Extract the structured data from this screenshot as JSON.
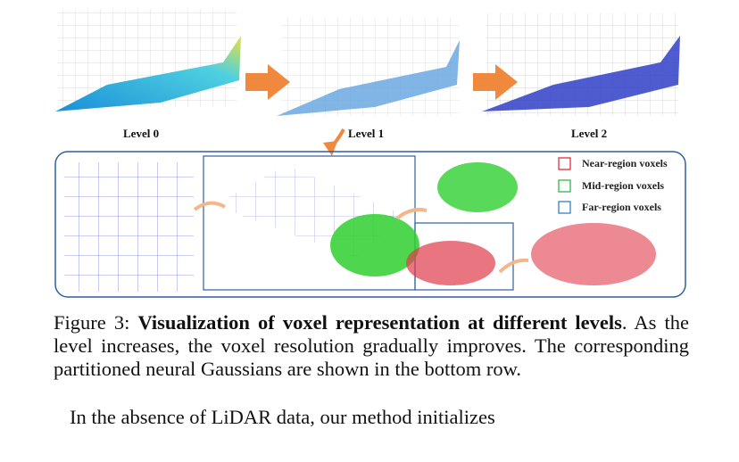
{
  "figure": {
    "levels": [
      "Level 0",
      "Level 1",
      "Level 2"
    ],
    "legend": [
      {
        "label": "Near-region voxels",
        "color": "#e0303a"
      },
      {
        "label": "Mid-region voxels",
        "color": "#2fb84a"
      },
      {
        "label": "Far-region voxels",
        "color": "#3a7fc0"
      }
    ],
    "arrow_color": "#f0883e",
    "frame_color": "#2f5fa0"
  },
  "caption": {
    "label": "Figure 3:",
    "bold": "Visualization of voxel representation at different levels",
    "rest": ". As the level increases, the voxel resolution gradually improves. The corresponding partitioned neural Gaussians are shown in the bottom row."
  },
  "body_text": "In the absence of LiDAR data, our method initializes"
}
